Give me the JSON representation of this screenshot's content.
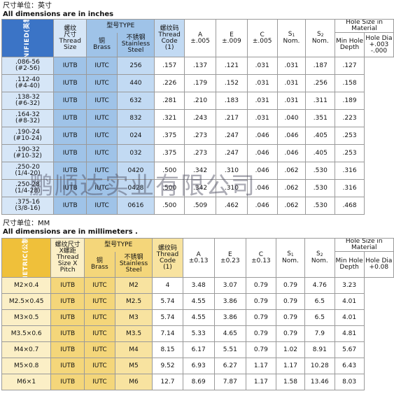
{
  "unified": {
    "unit_cn": "尺寸单位：英寸",
    "unit_en": "All dimensions are in inches",
    "side_label": "UNIFIED(英制)",
    "header": {
      "size": [
        "螺纹",
        "尺寸",
        "Thread",
        "Size"
      ],
      "type_title": "型号TYPE",
      "brass": [
        "铜",
        "Brass"
      ],
      "stainless": [
        "不锈钢",
        "Stainless",
        "Steel"
      ],
      "code": [
        "螺纹码",
        "Thread",
        "Code",
        "(1)"
      ],
      "a": [
        "A",
        "±.005"
      ],
      "e": [
        "E",
        "±.009"
      ],
      "c": [
        "C",
        "±.005"
      ],
      "s1": [
        "S",
        "1",
        "Nom."
      ],
      "s2": [
        "S",
        "2",
        "Nom."
      ],
      "hole_title": "Hole Size in Material",
      "min_hole": [
        "Min Hole",
        "Depth"
      ],
      "hole_dia": [
        "Hole Dia",
        "+.003",
        "-.000"
      ]
    },
    "rows": [
      {
        "size": [
          ".086-56",
          "(#2-56)"
        ],
        "brass": "IUTB",
        "stainless": "IUTC",
        "code": "256",
        "a": ".157",
        "e": ".137",
        "c": ".121",
        "s1": ".031",
        "s2": ".031",
        "depth": ".187",
        "dia": ".127"
      },
      {
        "size": [
          ".112-40",
          "(#4-40)"
        ],
        "brass": "IUTB",
        "stainless": "IUTC",
        "code": "440",
        "a": ".226",
        "e": ".179",
        "c": ".152",
        "s1": ".031",
        "s2": ".031",
        "depth": ".256",
        "dia": ".158"
      },
      {
        "size": [
          ".138-32",
          "(#6-32)"
        ],
        "brass": "IUTB",
        "stainless": "IUTC",
        "code": "632",
        "a": ".281",
        "e": ".210",
        "c": ".183",
        "s1": ".031",
        "s2": ".031",
        "depth": ".311",
        "dia": ".189"
      },
      {
        "size": [
          ".164-32",
          "(#8-32)"
        ],
        "brass": "IUTB",
        "stainless": "IUTC",
        "code": "832",
        "a": ".321",
        "e": ".243",
        "c": ".217",
        "s1": ".031",
        "s2": ".040",
        "depth": ".351",
        "dia": ".223"
      },
      {
        "size": [
          ".190-24",
          "(#10-24)"
        ],
        "brass": "IUTB",
        "stainless": "IUTC",
        "code": "024",
        "a": ".375",
        "e": ".273",
        "c": ".247",
        "s1": ".046",
        "s2": ".046",
        "depth": ".405",
        "dia": ".253"
      },
      {
        "size": [
          ".190-32",
          "(#10-32)"
        ],
        "brass": "IUTB",
        "stainless": "IUTC",
        "code": "032",
        "a": ".375",
        "e": ".273",
        "c": ".247",
        "s1": ".046",
        "s2": ".046",
        "depth": ".405",
        "dia": ".253"
      },
      {
        "size": [
          ".250-20",
          "(1/4-20)"
        ],
        "brass": "IUTB",
        "stainless": "IUTC",
        "code": "0420",
        "a": ".500",
        "e": ".342",
        "c": ".310",
        "s1": ".046",
        "s2": ".062",
        "depth": ".530",
        "dia": ".316"
      },
      {
        "size": [
          ".250-28",
          "(1/4-28)"
        ],
        "brass": "IUTB",
        "stainless": "IUTC",
        "code": "0428",
        "a": ".500",
        "e": ".342",
        "c": ".310",
        "s1": ".046",
        "s2": ".062",
        "depth": ".530",
        "dia": ".316"
      },
      {
        "size": [
          ".375-16",
          "(3/8-16)"
        ],
        "brass": "IUTB",
        "stainless": "IUTC",
        "code": "0616",
        "a": ".500",
        "e": ".509",
        "c": ".462",
        "s1": ".046",
        "s2": ".062",
        "depth": ".530",
        "dia": ".468"
      }
    ]
  },
  "metric": {
    "unit_cn": "尺寸单位：MM",
    "unit_en": "All dimensions are in millimeters .",
    "side_label": "METRIC(公制)",
    "header": {
      "size": [
        "螺纹尺寸",
        "X螺距",
        "Thread",
        "Size X",
        "Pitch"
      ],
      "type_title": "型号TYPE",
      "brass": [
        "铜",
        "Brass"
      ],
      "stainless": [
        "不锈钢",
        "Stainless",
        "Steel"
      ],
      "code": [
        "螺纹码",
        "Thread",
        "Code",
        "(1)"
      ],
      "a": [
        "A",
        "±0.13"
      ],
      "e": [
        "E",
        "±0.23"
      ],
      "c": [
        "C",
        "±0.13"
      ],
      "s1": [
        "S",
        "1",
        "Nom."
      ],
      "s2": [
        "S",
        "2",
        "Nom."
      ],
      "hole_title": "Hole Size in Material",
      "min_hole": [
        "Min Hole",
        "Depth"
      ],
      "hole_dia": [
        "Hole Dia",
        "+0.08"
      ]
    },
    "rows": [
      {
        "size": "M2×0.4",
        "brass": "IUTB",
        "stainless": "IUTC",
        "code": "M2",
        "a": "4",
        "e": "3.48",
        "c": "3.07",
        "s1": "0.79",
        "s2": "0.79",
        "depth": "4.76",
        "dia": "3.23"
      },
      {
        "size": "M2.5×0.45",
        "brass": "IUTB",
        "stainless": "IUTC",
        "code": "M2.5",
        "a": "5.74",
        "e": "4.55",
        "c": "3.86",
        "s1": "0.79",
        "s2": "0.79",
        "depth": "6.5",
        "dia": "4.01"
      },
      {
        "size": "M3×0.5",
        "brass": "IUTB",
        "stainless": "IUTC",
        "code": "M3",
        "a": "5.74",
        "e": "4.55",
        "c": "3.86",
        "s1": "0.79",
        "s2": "0.79",
        "depth": "6.5",
        "dia": "4.01"
      },
      {
        "size": "M3.5×0.6",
        "brass": "IUTB",
        "stainless": "IUTC",
        "code": "M3.5",
        "a": "7.14",
        "e": "5.33",
        "c": "4.65",
        "s1": "0.79",
        "s2": "0.79",
        "depth": "7.9",
        "dia": "4.81"
      },
      {
        "size": "M4×0.7",
        "brass": "IUTB",
        "stainless": "IUTC",
        "code": "M4",
        "a": "8.15",
        "e": "6.17",
        "c": "5.51",
        "s1": "0.79",
        "s2": "1.02",
        "depth": "8.91",
        "dia": "5.67"
      },
      {
        "size": "M5×0.8",
        "brass": "IUTB",
        "stainless": "IUTC",
        "code": "M5",
        "a": "9.52",
        "e": "6.93",
        "c": "6.27",
        "s1": "1.17",
        "s2": "1.17",
        "depth": "10.28",
        "dia": "6.43"
      },
      {
        "size": "M6×1",
        "brass": "IUTB",
        "stainless": "IUTC",
        "code": "M6",
        "a": "12.7",
        "e": "8.69",
        "c": "7.87",
        "s1": "1.17",
        "s2": "1.58",
        "depth": "13.46",
        "dia": "8.03"
      }
    ]
  },
  "watermark": "鹏顺达实业有限公司"
}
